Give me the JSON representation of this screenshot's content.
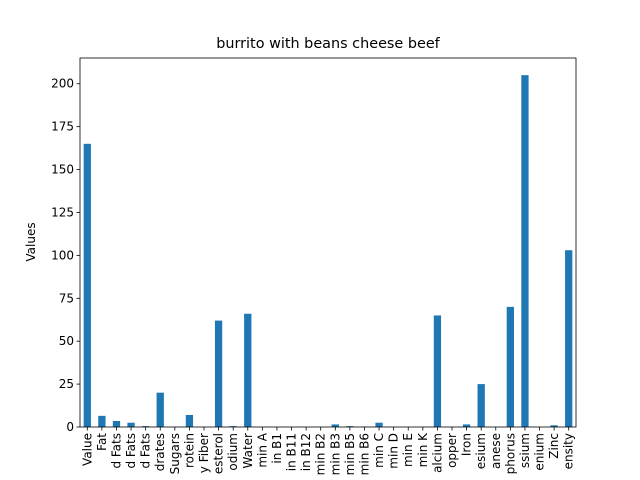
{
  "chart_data": {
    "type": "bar",
    "title": "burrito with beans cheese beef",
    "xlabel": "",
    "ylabel": "Values",
    "ylim": [
      0,
      215
    ],
    "yticks": [
      0,
      25,
      50,
      75,
      100,
      125,
      150,
      175,
      200
    ],
    "grid": false,
    "legend": "none",
    "bar_color": "#1f77b4",
    "categories": [
      "Value",
      "Fat",
      "d Fats",
      "d Fats",
      "d Fats",
      "drates",
      "Sugars",
      "rotein",
      "y Fiber",
      "esterol",
      "odium",
      "Water",
      "min A",
      "in B1",
      "in B11",
      "in B12",
      "min B2",
      "min B3",
      "min B5",
      "min B6",
      "min C",
      "min D",
      "min E",
      "min K",
      "alcium",
      "opper",
      "Iron",
      "esium",
      "anese",
      "phorus",
      "ssium",
      "enium",
      "Zinc",
      "ensity"
    ],
    "values": [
      165,
      6.5,
      3.5,
      2.5,
      0.5,
      20,
      0,
      7,
      0,
      62,
      0.5,
      66,
      0,
      0,
      0,
      0,
      0,
      1.5,
      0.5,
      0.2,
      2.5,
      0,
      0,
      0,
      65,
      0,
      1.5,
      25,
      0,
      70,
      205,
      0,
      1,
      103
    ]
  }
}
